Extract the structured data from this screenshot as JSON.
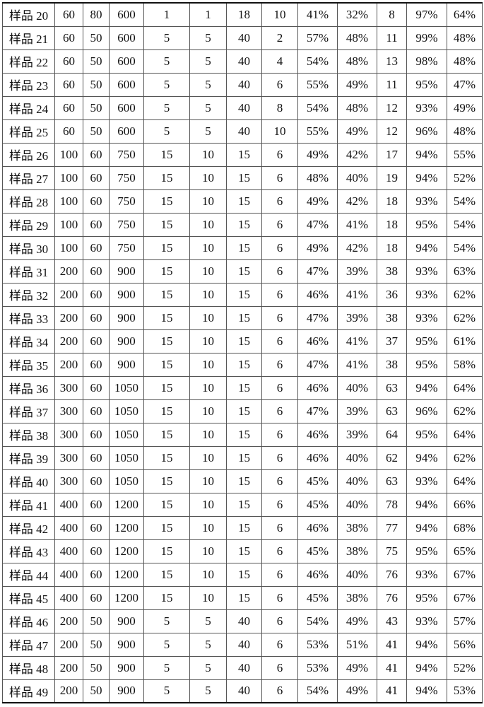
{
  "table": {
    "rows": [
      [
        "样品 20",
        "60",
        "80",
        "600",
        "1",
        "1",
        "18",
        "10",
        "41%",
        "32%",
        "8",
        "97%",
        "64%"
      ],
      [
        "样品 21",
        "60",
        "50",
        "600",
        "5",
        "5",
        "40",
        "2",
        "57%",
        "48%",
        "11",
        "99%",
        "48%"
      ],
      [
        "样品 22",
        "60",
        "50",
        "600",
        "5",
        "5",
        "40",
        "4",
        "54%",
        "48%",
        "13",
        "98%",
        "48%"
      ],
      [
        "样品 23",
        "60",
        "50",
        "600",
        "5",
        "5",
        "40",
        "6",
        "55%",
        "49%",
        "11",
        "95%",
        "47%"
      ],
      [
        "样品 24",
        "60",
        "50",
        "600",
        "5",
        "5",
        "40",
        "8",
        "54%",
        "48%",
        "12",
        "93%",
        "49%"
      ],
      [
        "样品 25",
        "60",
        "50",
        "600",
        "5",
        "5",
        "40",
        "10",
        "55%",
        "49%",
        "12",
        "96%",
        "48%"
      ],
      [
        "样品 26",
        "100",
        "60",
        "750",
        "15",
        "10",
        "15",
        "6",
        "49%",
        "42%",
        "17",
        "94%",
        "55%"
      ],
      [
        "样品 27",
        "100",
        "60",
        "750",
        "15",
        "10",
        "15",
        "6",
        "48%",
        "40%",
        "19",
        "94%",
        "52%"
      ],
      [
        "样品 28",
        "100",
        "60",
        "750",
        "15",
        "10",
        "15",
        "6",
        "49%",
        "42%",
        "18",
        "93%",
        "54%"
      ],
      [
        "样品 29",
        "100",
        "60",
        "750",
        "15",
        "10",
        "15",
        "6",
        "47%",
        "41%",
        "18",
        "95%",
        "54%"
      ],
      [
        "样品 30",
        "100",
        "60",
        "750",
        "15",
        "10",
        "15",
        "6",
        "49%",
        "42%",
        "18",
        "94%",
        "54%"
      ],
      [
        "样品 31",
        "200",
        "60",
        "900",
        "15",
        "10",
        "15",
        "6",
        "47%",
        "39%",
        "38",
        "93%",
        "63%"
      ],
      [
        "样品 32",
        "200",
        "60",
        "900",
        "15",
        "10",
        "15",
        "6",
        "46%",
        "41%",
        "36",
        "93%",
        "62%"
      ],
      [
        "样品 33",
        "200",
        "60",
        "900",
        "15",
        "10",
        "15",
        "6",
        "47%",
        "39%",
        "38",
        "93%",
        "62%"
      ],
      [
        "样品 34",
        "200",
        "60",
        "900",
        "15",
        "10",
        "15",
        "6",
        "46%",
        "41%",
        "37",
        "95%",
        "61%"
      ],
      [
        "样品 35",
        "200",
        "60",
        "900",
        "15",
        "10",
        "15",
        "6",
        "47%",
        "41%",
        "38",
        "95%",
        "58%"
      ],
      [
        "样品 36",
        "300",
        "60",
        "1050",
        "15",
        "10",
        "15",
        "6",
        "46%",
        "40%",
        "63",
        "94%",
        "64%"
      ],
      [
        "样品 37",
        "300",
        "60",
        "1050",
        "15",
        "10",
        "15",
        "6",
        "47%",
        "39%",
        "63",
        "96%",
        "62%"
      ],
      [
        "样品 38",
        "300",
        "60",
        "1050",
        "15",
        "10",
        "15",
        "6",
        "46%",
        "39%",
        "64",
        "95%",
        "64%"
      ],
      [
        "样品 39",
        "300",
        "60",
        "1050",
        "15",
        "10",
        "15",
        "6",
        "46%",
        "40%",
        "62",
        "94%",
        "62%"
      ],
      [
        "样品 40",
        "300",
        "60",
        "1050",
        "15",
        "10",
        "15",
        "6",
        "45%",
        "40%",
        "63",
        "93%",
        "64%"
      ],
      [
        "样品 41",
        "400",
        "60",
        "1200",
        "15",
        "10",
        "15",
        "6",
        "45%",
        "40%",
        "78",
        "94%",
        "66%"
      ],
      [
        "样品 42",
        "400",
        "60",
        "1200",
        "15",
        "10",
        "15",
        "6",
        "46%",
        "38%",
        "77",
        "94%",
        "68%"
      ],
      [
        "样品 43",
        "400",
        "60",
        "1200",
        "15",
        "10",
        "15",
        "6",
        "45%",
        "38%",
        "75",
        "95%",
        "65%"
      ],
      [
        "样品 44",
        "400",
        "60",
        "1200",
        "15",
        "10",
        "15",
        "6",
        "46%",
        "40%",
        "76",
        "93%",
        "67%"
      ],
      [
        "样品 45",
        "400",
        "60",
        "1200",
        "15",
        "10",
        "15",
        "6",
        "45%",
        "38%",
        "76",
        "95%",
        "67%"
      ],
      [
        "样品 46",
        "200",
        "50",
        "900",
        "5",
        "5",
        "40",
        "6",
        "54%",
        "49%",
        "43",
        "93%",
        "57%"
      ],
      [
        "样品 47",
        "200",
        "50",
        "900",
        "5",
        "5",
        "40",
        "6",
        "53%",
        "51%",
        "41",
        "94%",
        "56%"
      ],
      [
        "样品 48",
        "200",
        "50",
        "900",
        "5",
        "5",
        "40",
        "6",
        "53%",
        "49%",
        "41",
        "94%",
        "52%"
      ],
      [
        "样品 49",
        "200",
        "50",
        "900",
        "5",
        "5",
        "40",
        "6",
        "54%",
        "49%",
        "41",
        "94%",
        "53%"
      ]
    ]
  }
}
